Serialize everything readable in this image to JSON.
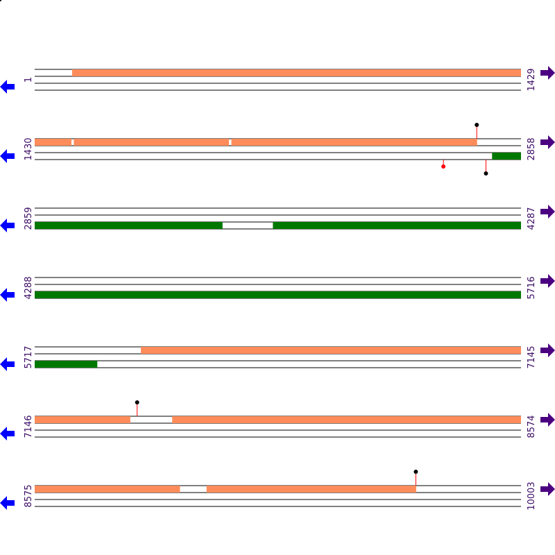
{
  "colors": {
    "forward_feature": "#ff8c5a",
    "reverse_feature": "#007800",
    "arrow_left": "#0000ff",
    "arrow_right": "#4b0082",
    "line": "#000000",
    "lollipop_stem": "#ff0000",
    "lollipop_head_dark": "#000000",
    "lollipop_head_red": "#ff0000",
    "label": "#3a0a64"
  },
  "icons": {
    "left": "blue-left-arrow-icon",
    "right": "purple-right-arrow-icon"
  },
  "rows": [
    {
      "start_label": "1",
      "end_label": "1429",
      "start": 1,
      "end": 1429,
      "forward": [
        [
          111,
          1429
        ]
      ],
      "reverse": [],
      "markers": []
    },
    {
      "start_label": "1430",
      "end_label": "2858",
      "start": 1430,
      "end": 2858,
      "forward": [
        [
          1430,
          1537
        ],
        [
          1545,
          2000
        ],
        [
          2008,
          2729
        ]
      ],
      "reverse": [
        [
          2774,
          2858
        ]
      ],
      "markers": [
        {
          "pos": 2729,
          "strand": "forward",
          "head": "dark"
        },
        {
          "pos": 2631,
          "strand": "reverse",
          "head": "red"
        },
        {
          "pos": 2756,
          "strand": "reverse",
          "head": "dark"
        }
      ]
    },
    {
      "start_label": "2859",
      "end_label": "4287",
      "start": 2859,
      "end": 4287,
      "forward": [],
      "reverse": [
        [
          2859,
          3410
        ],
        [
          3559,
          4287
        ]
      ],
      "markers": []
    },
    {
      "start_label": "4288",
      "end_label": "5716",
      "start": 4288,
      "end": 5716,
      "forward": [],
      "reverse": [
        [
          4288,
          5716
        ]
      ],
      "markers": []
    },
    {
      "start_label": "5717",
      "end_label": "7145",
      "start": 5717,
      "end": 7145,
      "forward": [
        [
          6029,
          7145
        ]
      ],
      "reverse": [
        [
          5717,
          5900
        ]
      ],
      "markers": []
    },
    {
      "start_label": "7146",
      "end_label": "8574",
      "start": 7146,
      "end": 8574,
      "forward": [
        [
          7146,
          7426
        ],
        [
          7550,
          8574
        ]
      ],
      "reverse": [],
      "markers": [
        {
          "pos": 7447,
          "strand": "forward",
          "head": "dark"
        }
      ]
    },
    {
      "start_label": "8575",
      "end_label": "10003",
      "start": 8575,
      "end": 10003,
      "forward": [
        [
          8575,
          9001
        ],
        [
          9080,
          9695
        ]
      ],
      "reverse": [],
      "markers": [
        {
          "pos": 9695,
          "strand": "forward",
          "head": "dark"
        }
      ]
    }
  ]
}
